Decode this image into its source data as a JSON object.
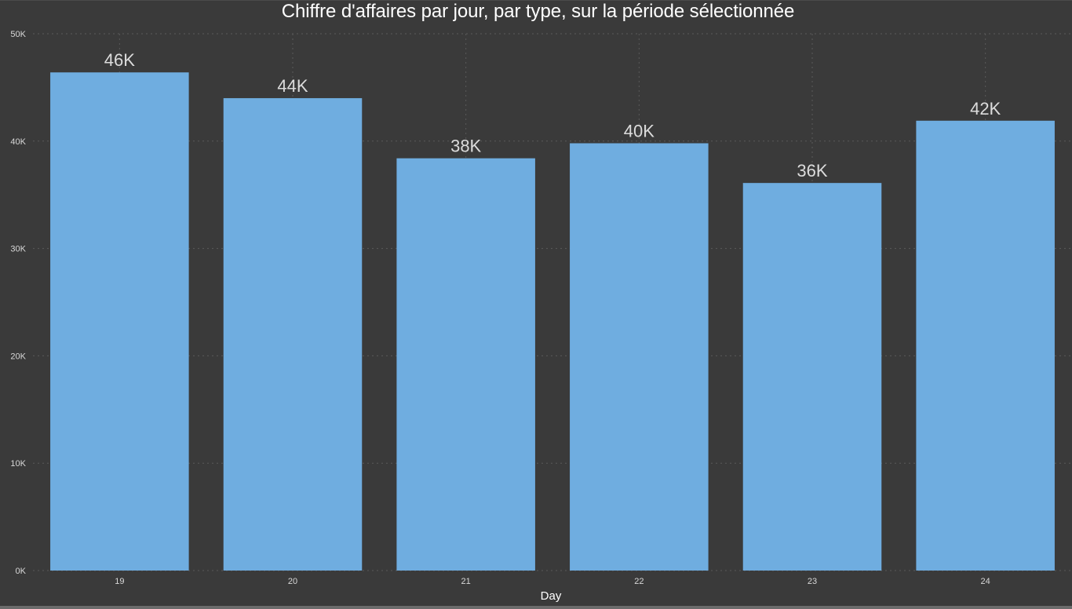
{
  "chart_data": {
    "type": "bar",
    "title": "Chiffre d'affaires par jour, par type, sur la période sélectionnée",
    "xlabel": "Day",
    "ylabel": "",
    "categories": [
      "19",
      "20",
      "21",
      "22",
      "23",
      "24"
    ],
    "values": [
      46400,
      44000,
      38400,
      39800,
      36100,
      41900
    ],
    "data_labels": [
      "46K",
      "44K",
      "38K",
      "40K",
      "36K",
      "42K"
    ],
    "ylim": [
      0,
      50000
    ],
    "yticks": [
      0,
      10000,
      20000,
      30000,
      40000,
      50000
    ],
    "ytick_labels": [
      "0K",
      "10K",
      "20K",
      "30K",
      "40K",
      "50K"
    ],
    "grid": true,
    "legend": "none",
    "colors": {
      "bar": "#6fade0",
      "background": "#3a3a3a",
      "text": "#ffffff"
    }
  }
}
